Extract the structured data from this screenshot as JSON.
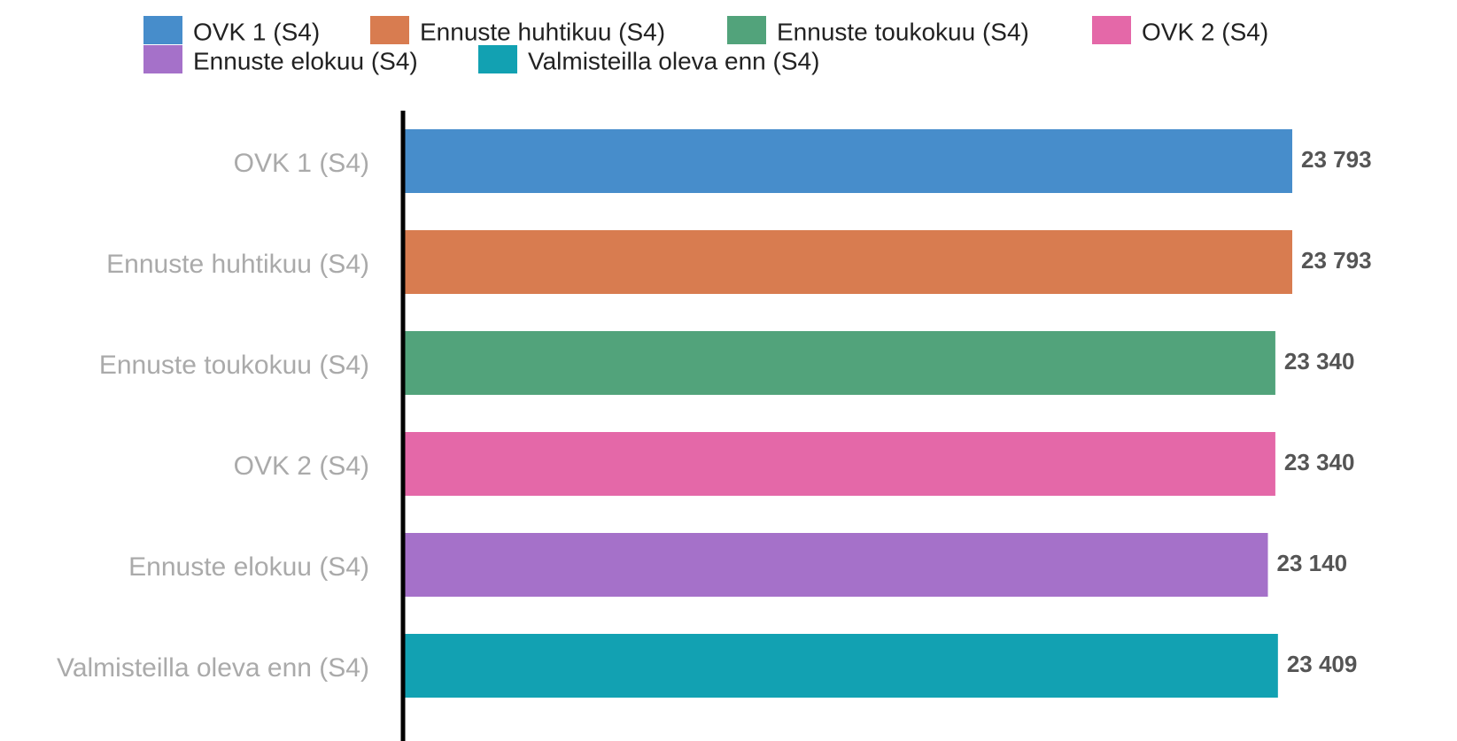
{
  "chart_data": {
    "type": "bar",
    "orientation": "horizontal",
    "categories": [
      "OVK 1 (S4)",
      "Ennuste huhtikuu (S4)",
      "Ennuste toukokuu (S4)",
      "OVK 2 (S4)",
      "Ennuste elokuu (S4)",
      "Valmisteilla oleva enn (S4)"
    ],
    "values": [
      23793,
      23793,
      23340,
      23340,
      23140,
      23409
    ],
    "value_labels": [
      "23 793",
      "23 793",
      "23 340",
      "23 340",
      "23 140",
      "23 409"
    ],
    "colors": [
      "#478dcb",
      "#d87c50",
      "#52a37b",
      "#e468a8",
      "#a571c9",
      "#12a1b2"
    ],
    "legend": "top"
  }
}
